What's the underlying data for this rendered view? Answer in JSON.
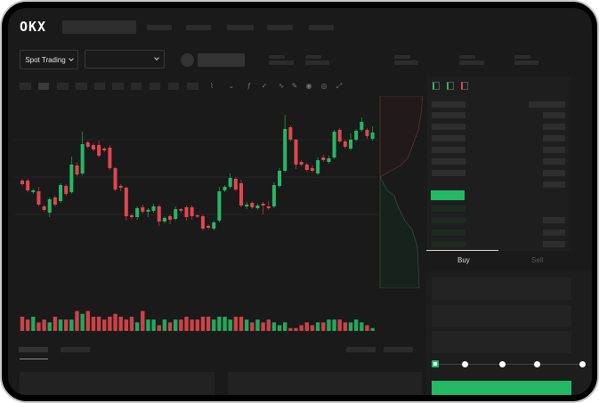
{
  "header": {
    "logo": "OKX",
    "spot_trading_label": "Spot Trading"
  },
  "trade": {
    "buy_label": "Buy",
    "sell_label": "Sell",
    "slider_value_percent": 0
  },
  "colors": {
    "up": "#25b865",
    "down": "#e0474e",
    "background": "#1a1a1a"
  },
  "chart_data": {
    "type": "candlestick",
    "candles": [
      [
        57,
        59,
        51,
        53
      ],
      [
        57,
        59,
        44,
        46
      ],
      [
        44,
        48,
        42,
        46
      ],
      [
        45,
        50,
        28,
        30
      ],
      [
        28,
        30,
        22,
        24
      ],
      [
        21,
        38,
        16,
        36
      ],
      [
        38,
        40,
        28,
        30
      ],
      [
        34,
        54,
        32,
        52
      ],
      [
        51,
        53,
        40,
        42
      ],
      [
        44,
        84,
        42,
        75
      ],
      [
        74,
        77,
        62,
        64
      ],
      [
        65,
        112,
        63,
        98
      ],
      [
        100,
        102,
        93,
        95
      ],
      [
        97,
        99,
        90,
        92
      ],
      [
        97,
        102,
        83,
        85
      ],
      [
        93,
        95,
        89,
        91
      ],
      [
        94,
        97,
        69,
        71
      ],
      [
        71,
        72,
        45,
        47
      ],
      [
        51,
        53,
        45,
        49
      ],
      [
        49,
        50,
        12,
        17
      ],
      [
        18,
        20,
        14,
        16
      ],
      [
        16,
        28,
        13,
        26
      ],
      [
        27,
        30,
        20,
        22
      ],
      [
        22,
        26,
        16,
        24
      ],
      [
        23,
        31,
        21,
        28
      ],
      [
        28,
        30,
        6,
        11
      ],
      [
        11,
        17,
        9,
        15
      ],
      [
        17,
        19,
        8,
        13
      ],
      [
        14,
        28,
        12,
        25
      ],
      [
        25,
        26,
        21,
        23
      ],
      [
        27,
        29,
        12,
        16
      ],
      [
        27,
        29,
        13,
        17
      ],
      [
        18,
        19,
        15,
        17
      ],
      [
        17,
        19,
        1,
        3
      ],
      [
        6,
        8,
        2,
        4
      ],
      [
        3,
        12,
        1,
        10
      ],
      [
        12,
        50,
        10,
        45
      ],
      [
        46,
        52,
        44,
        50
      ],
      [
        50,
        65,
        48,
        60
      ],
      [
        59,
        61,
        45,
        47
      ],
      [
        54,
        58,
        27,
        29
      ],
      [
        28,
        33,
        25,
        30
      ],
      [
        32,
        34,
        25,
        27
      ],
      [
        26,
        31,
        24,
        29
      ],
      [
        31,
        33,
        19,
        29
      ],
      [
        28,
        34,
        24,
        26
      ],
      [
        28,
        55,
        26,
        52
      ],
      [
        51,
        71,
        49,
        68
      ],
      [
        68,
        131,
        66,
        115
      ],
      [
        117,
        119,
        101,
        103
      ],
      [
        103,
        104,
        70,
        75
      ],
      [
        78,
        80,
        73,
        75
      ],
      [
        75,
        77,
        67,
        69
      ],
      [
        71,
        74,
        66,
        68
      ],
      [
        65,
        83,
        63,
        80
      ],
      [
        83,
        86,
        78,
        80
      ],
      [
        78,
        85,
        76,
        82
      ],
      [
        83,
        114,
        81,
        112
      ],
      [
        114,
        116,
        99,
        101
      ],
      [
        101,
        103,
        93,
        95
      ],
      [
        93,
        110,
        91,
        103
      ],
      [
        103,
        115,
        101,
        113
      ],
      [
        114,
        128,
        112,
        123
      ],
      [
        114,
        116,
        104,
        107
      ],
      [
        104,
        118,
        102,
        111
      ]
    ],
    "volume": [
      5,
      4,
      5,
      3,
      4,
      3,
      5,
      4,
      4,
      4,
      7,
      6,
      7,
      5,
      5,
      4,
      5,
      6,
      5,
      4,
      5,
      3,
      7,
      4,
      4,
      2,
      4,
      3,
      4,
      4,
      5,
      4,
      4,
      5,
      5,
      4,
      5,
      5,
      4,
      5,
      5,
      4,
      3,
      4,
      3,
      4,
      3,
      2,
      3,
      1,
      1,
      2,
      3,
      2,
      3,
      3,
      4,
      4,
      4,
      3,
      3,
      4,
      3,
      2,
      1
    ],
    "volume_direction": [
      "down",
      "down",
      "up",
      "down",
      "down",
      "up",
      "down",
      "up",
      "down",
      "up",
      "down",
      "up",
      "down",
      "down",
      "down",
      "down",
      "down",
      "down",
      "down",
      "down",
      "down",
      "up",
      "down",
      "up",
      "up",
      "down",
      "up",
      "down",
      "up",
      "down",
      "down",
      "down",
      "down",
      "down",
      "down",
      "up",
      "up",
      "up",
      "up",
      "down",
      "down",
      "up",
      "down",
      "up",
      "down",
      "down",
      "up",
      "up",
      "up",
      "down",
      "down",
      "down",
      "down",
      "down",
      "up",
      "down",
      "up",
      "up",
      "down",
      "down",
      "up",
      "up",
      "up",
      "down",
      "up"
    ]
  }
}
